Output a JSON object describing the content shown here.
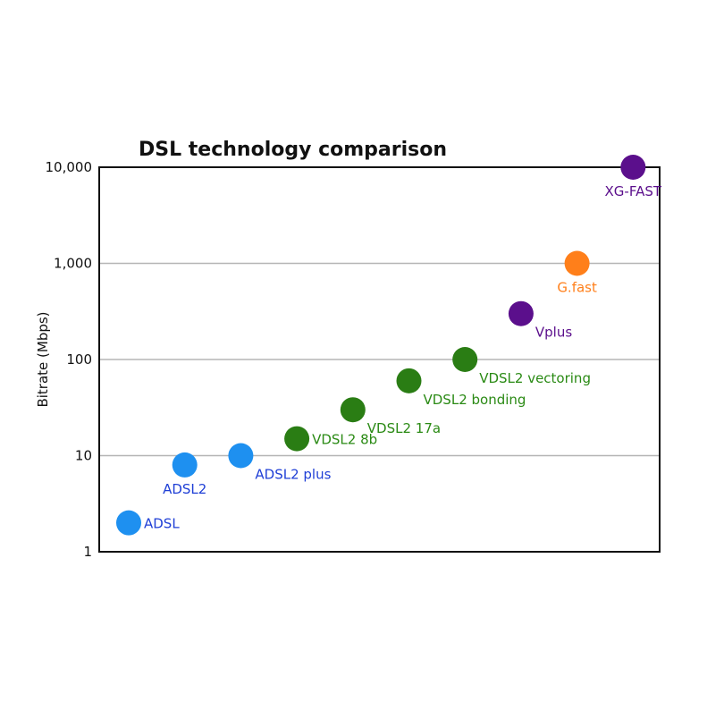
{
  "chart_data": {
    "type": "scatter",
    "title": "DSL technology comparison",
    "xlabel": "",
    "ylabel": "Bitrate (Mbps)",
    "yscale": "log",
    "ylim": [
      1,
      10000
    ],
    "yticks": [
      {
        "value": 1,
        "label": "1"
      },
      {
        "value": 10,
        "label": "10"
      },
      {
        "value": 100,
        "label": "100"
      },
      {
        "value": 1000,
        "label": "1,000"
      },
      {
        "value": 10000,
        "label": "10,000"
      }
    ],
    "grid": true,
    "points": [
      {
        "label": "ADSL",
        "y": 2,
        "color": "#1e90f0",
        "label_color": "#1f3fd6",
        "label_pos": "right"
      },
      {
        "label": "ADSL2",
        "y": 8,
        "color": "#1e90f0",
        "label_color": "#1f3fd6",
        "label_pos": "below"
      },
      {
        "label": "ADSL2 plus",
        "y": 10,
        "color": "#1e90f0",
        "label_color": "#1f3fd6",
        "label_pos": "below-right"
      },
      {
        "label": "VDSL2 8b",
        "y": 15,
        "color": "#2a7d14",
        "label_color": "#2a8a14",
        "label_pos": "right"
      },
      {
        "label": "VDSL2 17a",
        "y": 30,
        "color": "#2a7d14",
        "label_color": "#2a8a14",
        "label_pos": "below-right"
      },
      {
        "label": "VDSL2 bonding",
        "y": 60,
        "color": "#2a7d14",
        "label_color": "#2a8a14",
        "label_pos": "below-right"
      },
      {
        "label": "VDSL2 vectoring",
        "y": 100,
        "color": "#2a7d14",
        "label_color": "#2a8a14",
        "label_pos": "below-right"
      },
      {
        "label": "Vplus",
        "y": 300,
        "color": "#5b0f8c",
        "label_color": "#5b0f8c",
        "label_pos": "below-right"
      },
      {
        "label": "G.fast",
        "y": 1000,
        "color": "#ff7f1a",
        "label_color": "#ff7f1a",
        "label_pos": "below"
      },
      {
        "label": "XG-FAST",
        "y": 10000,
        "color": "#5b0f8c",
        "label_color": "#5b0f8c",
        "label_pos": "below"
      }
    ]
  }
}
